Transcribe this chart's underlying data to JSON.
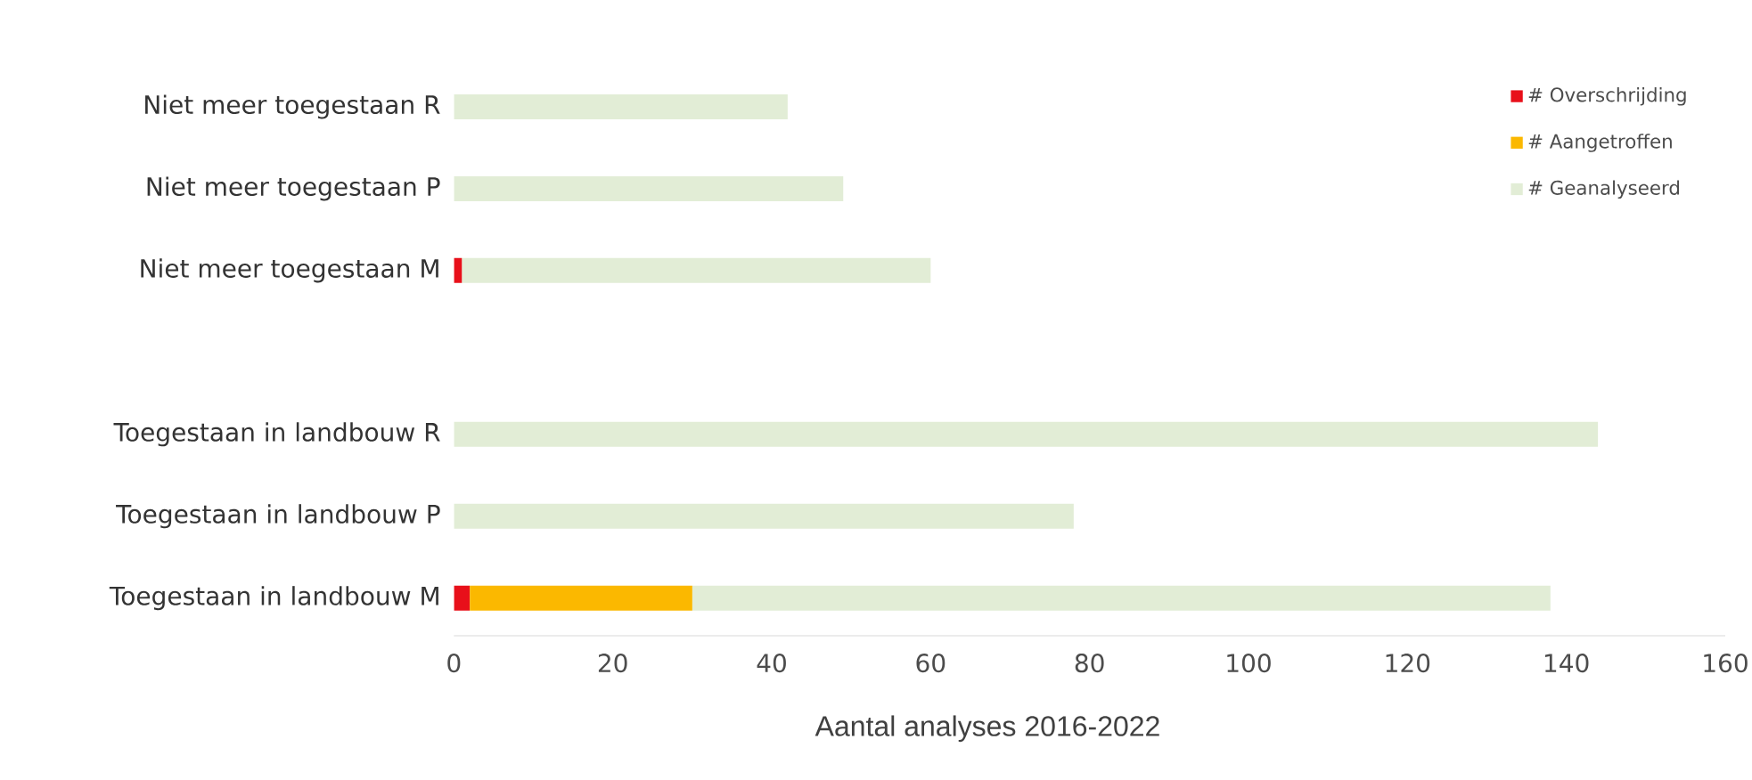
{
  "chart_data": {
    "type": "bar",
    "orientation": "horizontal",
    "stacked": true,
    "categories": [
      "Niet meer toegestaan  R",
      "Niet meer toegestaan  P",
      "Niet meer toegestaan  M",
      null,
      "Toegestaan in landbouw  R",
      "Toegestaan in landbouw  P",
      "Toegestaan in landbouw  M"
    ],
    "series": [
      {
        "name": "# Overschrijding",
        "color": "#e8101a",
        "values": [
          0,
          0,
          1,
          null,
          0,
          0,
          2
        ]
      },
      {
        "name": "# Aangetroffen",
        "color": "#fbb800",
        "values": [
          0,
          0,
          0,
          null,
          0,
          0,
          28
        ]
      },
      {
        "name": "# Geanalyseerd",
        "color": "#e2edd6",
        "values": [
          42,
          49,
          59,
          null,
          144,
          78,
          108
        ]
      }
    ],
    "xlim": [
      0,
      160
    ],
    "xticks": [
      0,
      20,
      40,
      60,
      80,
      100,
      120,
      140,
      160
    ],
    "xlabel": "Aantal analyses 2016-2022",
    "legend": "top right"
  }
}
